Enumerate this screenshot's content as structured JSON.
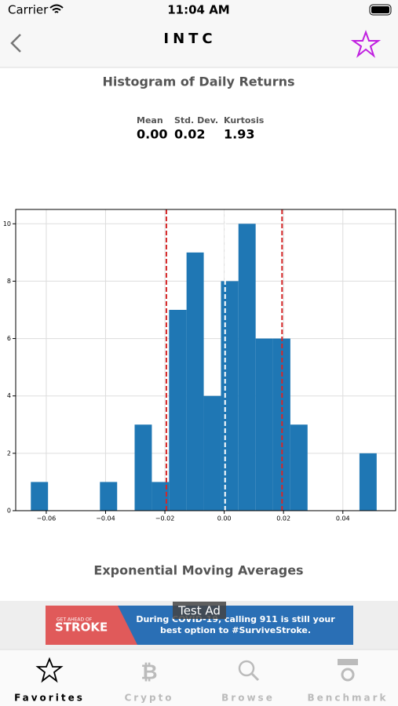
{
  "status_bar": {
    "carrier": "Carrier",
    "time": "11:04 AM"
  },
  "nav": {
    "title": "INTC"
  },
  "stats": [
    {
      "label": "Mean",
      "value": "0.00"
    },
    {
      "label": "Std. Dev.",
      "value": "0.02"
    },
    {
      "label": "Kurtosis",
      "value": "1.93"
    }
  ],
  "chart_data": {
    "type": "histogram",
    "title": "Histogram of Daily Returns",
    "color": "#1f77b4",
    "bins": [
      -0.0652,
      -0.0594,
      -0.0536,
      -0.0477,
      -0.0419,
      -0.0361,
      -0.0302,
      -0.0244,
      -0.0186,
      -0.0127,
      -0.0069,
      -0.0011,
      0.0048,
      0.0106,
      0.0164,
      0.0223,
      0.0281,
      0.0339,
      0.0398,
      0.0456,
      0.0514
    ],
    "counts": [
      1,
      0,
      0,
      0,
      1,
      0,
      3,
      1,
      7,
      9,
      4,
      8,
      10,
      6,
      6,
      3,
      0,
      0,
      0,
      2
    ],
    "vlines": [
      {
        "value": -0.0195,
        "color": "#d62728"
      },
      {
        "value": 0.0003,
        "color": "#ffffff"
      },
      {
        "value": 0.0195,
        "color": "#d62728"
      }
    ],
    "xlim": [
      -0.0703,
      0.0578
    ],
    "ylim": [
      0,
      10.5
    ],
    "xticks": [
      {
        "value": -0.06,
        "label": "−0.06"
      },
      {
        "value": -0.04,
        "label": "−0.04"
      },
      {
        "value": -0.02,
        "label": "−0.02"
      },
      {
        "value": 0,
        "label": "0.00"
      },
      {
        "value": 0.02,
        "label": "0.02"
      },
      {
        "value": 0.04,
        "label": "0.04"
      }
    ],
    "yticks": [
      0,
      2,
      4,
      6,
      8,
      10
    ],
    "grid": true
  },
  "section_title": "Exponential Moving Averages",
  "ad": {
    "badge": "Test Ad",
    "brand_top": "GET AHEAD OF",
    "brand": "STROKE",
    "text_1": "During COVID-19, calling 911 is still your",
    "text_2": "best option to #SurviveStroke."
  },
  "tabs": [
    "Favorites",
    "Crypto",
    "Browse",
    "Benchmark"
  ]
}
